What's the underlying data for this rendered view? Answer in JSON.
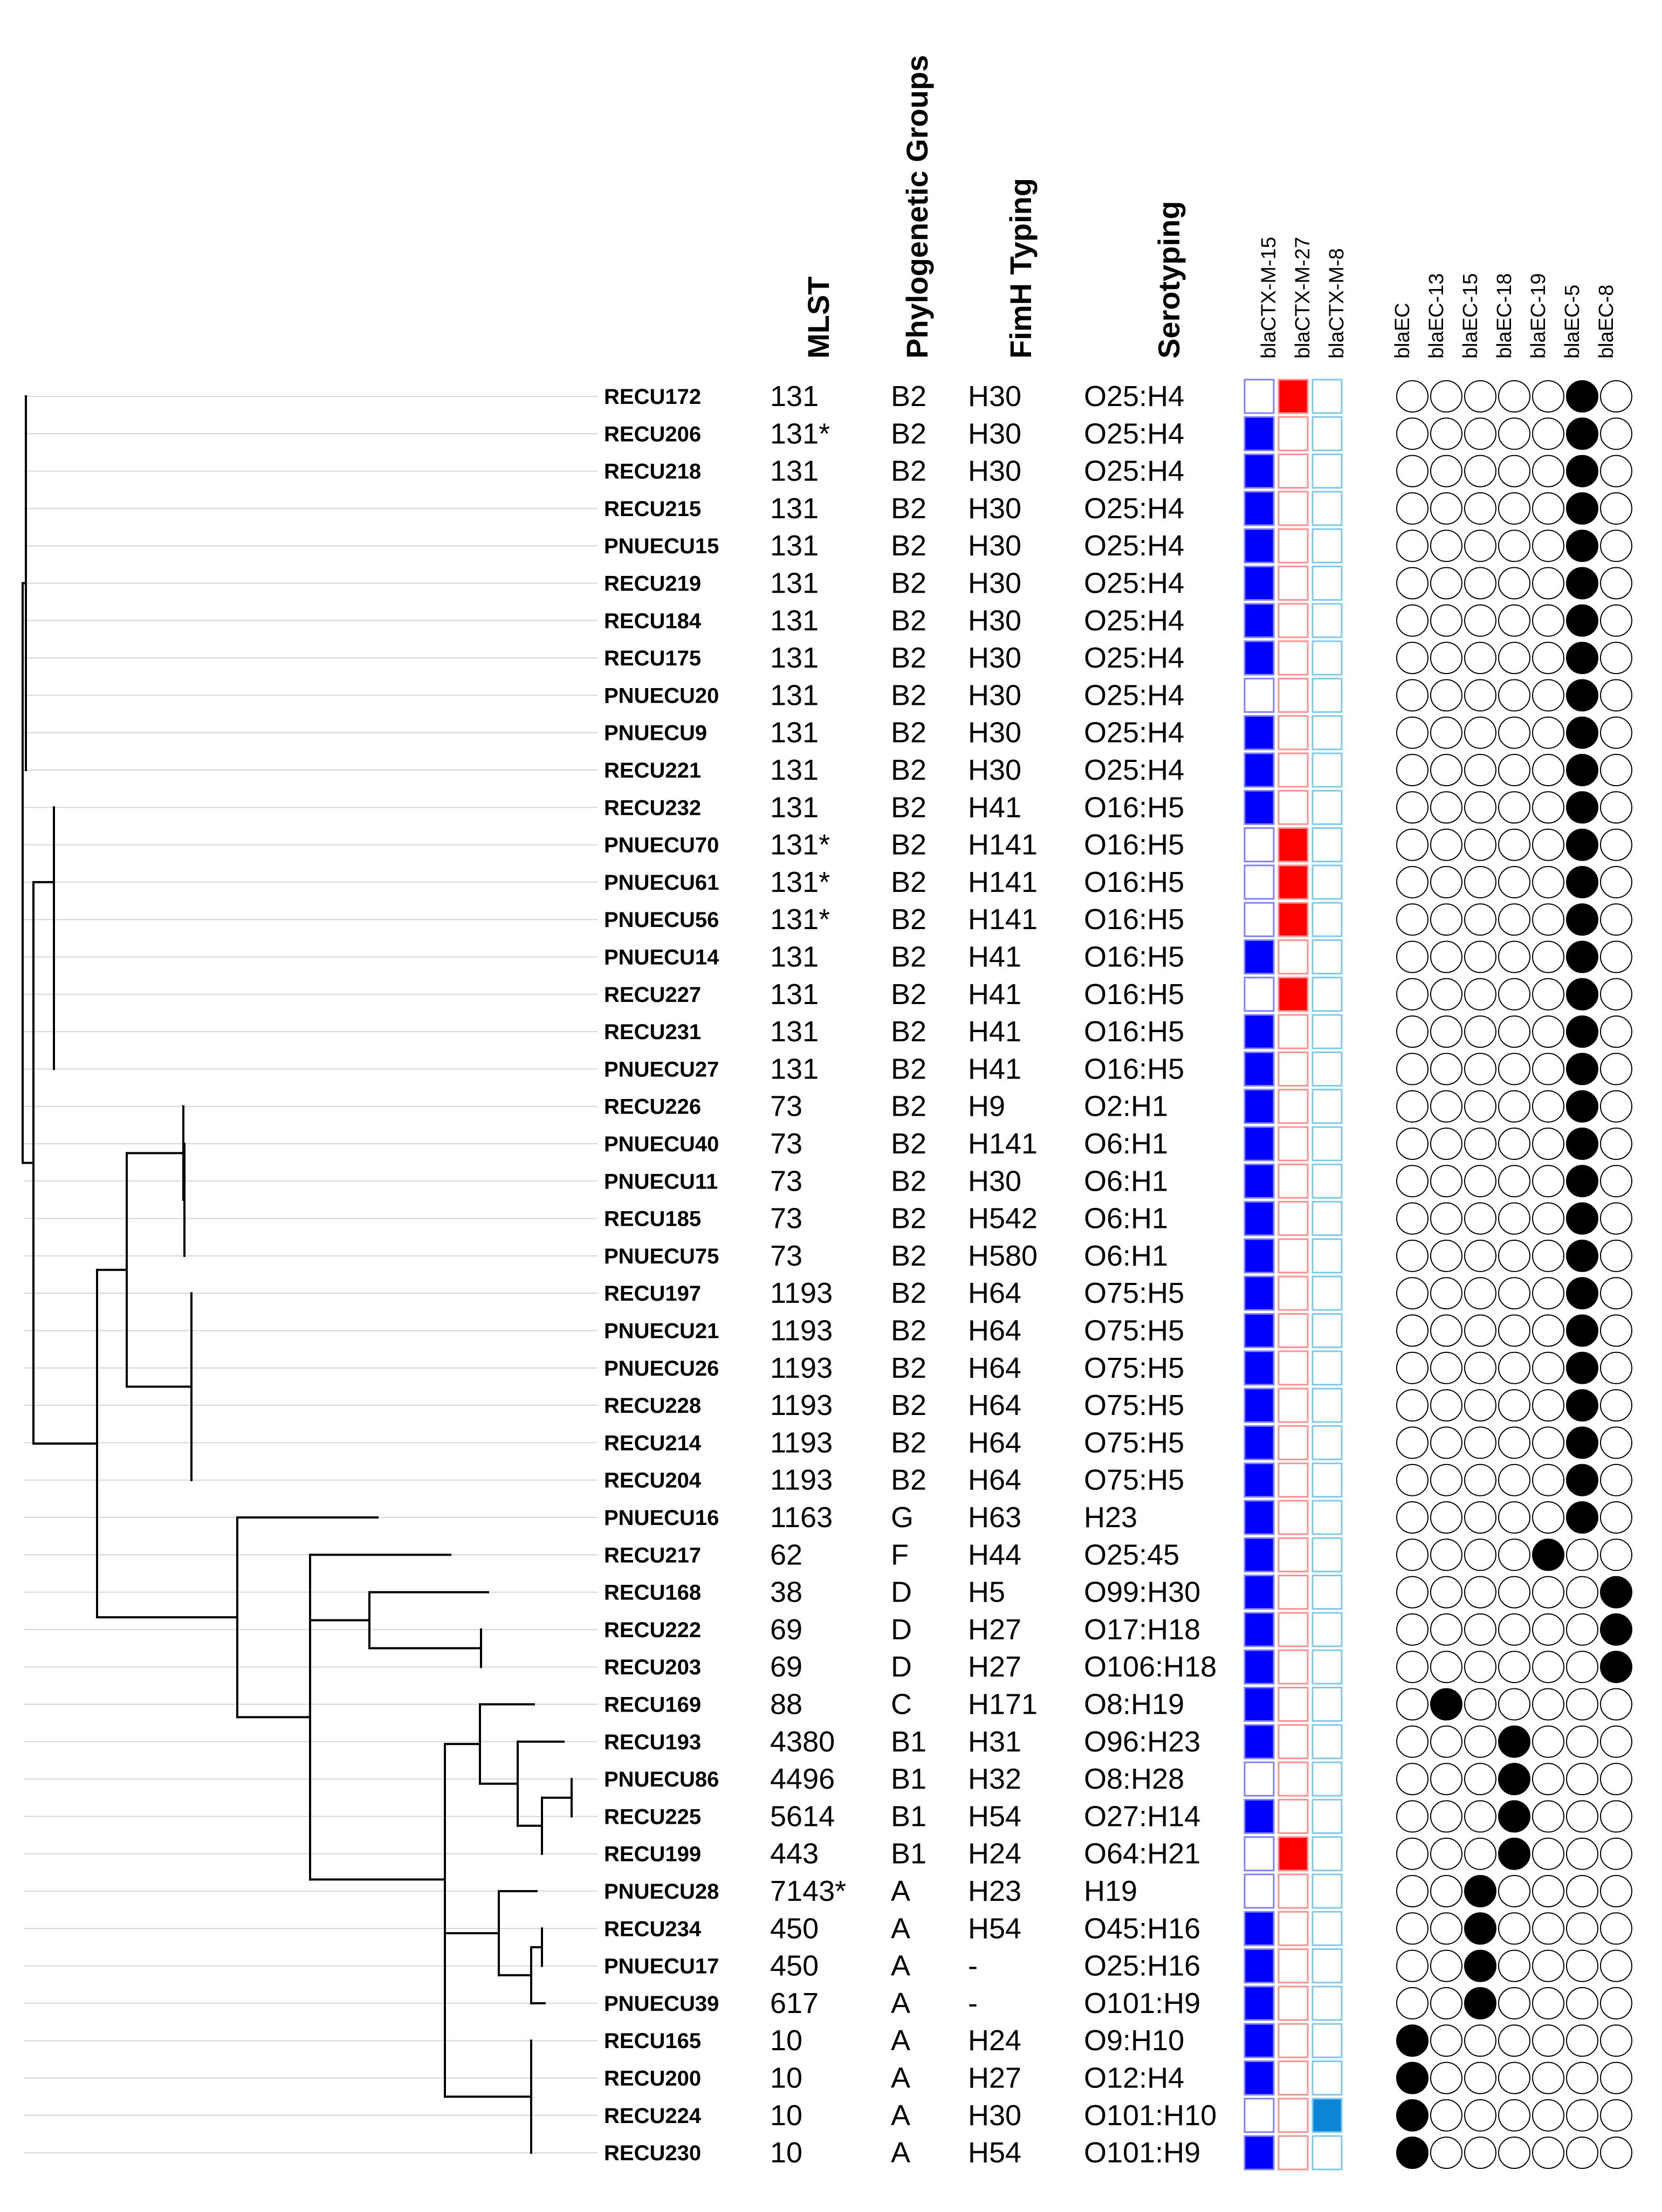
{
  "headers": {
    "mlst": "MLST",
    "phylo": "Phylogenetic Groups",
    "fimh": "FimH Typing",
    "sero": "Serotyping",
    "ctx": [
      "blaCTX-M-15",
      "blaCTX-M-27",
      "blaCTX-M-8"
    ],
    "ec": [
      "blaEC",
      "blaEC-13",
      "blaEC-15",
      "blaEC-18",
      "blaEC-19",
      "blaEC-5",
      "blaEC-8"
    ]
  },
  "colors": {
    "ctx15": "#0000ff",
    "ctx27": "#ff0000",
    "ctx8": "#0a86d4",
    "ctx15_border": "#8080ff",
    "ctx27_border": "#ff9090",
    "ctx8_border": "#80c8e8",
    "dot": "#000000",
    "guide": "#d6d6d6",
    "tree": "#000000"
  },
  "isolates": [
    {
      "id": "RECU172",
      "mlst": "131",
      "phylo": "B2",
      "fimh": "H30",
      "sero": "O25:H4",
      "ctx": [
        0,
        1,
        0
      ],
      "ec": 5
    },
    {
      "id": "RECU206",
      "mlst": "131*",
      "phylo": "B2",
      "fimh": "H30",
      "sero": "O25:H4",
      "ctx": [
        1,
        0,
        0
      ],
      "ec": 5
    },
    {
      "id": "RECU218",
      "mlst": "131",
      "phylo": "B2",
      "fimh": "H30",
      "sero": "O25:H4",
      "ctx": [
        1,
        0,
        0
      ],
      "ec": 5
    },
    {
      "id": "RECU215",
      "mlst": "131",
      "phylo": "B2",
      "fimh": "H30",
      "sero": "O25:H4",
      "ctx": [
        1,
        0,
        0
      ],
      "ec": 5
    },
    {
      "id": "PNUECU15",
      "mlst": "131",
      "phylo": "B2",
      "fimh": "H30",
      "sero": "O25:H4",
      "ctx": [
        1,
        0,
        0
      ],
      "ec": 5
    },
    {
      "id": "RECU219",
      "mlst": "131",
      "phylo": "B2",
      "fimh": "H30",
      "sero": "O25:H4",
      "ctx": [
        1,
        0,
        0
      ],
      "ec": 5
    },
    {
      "id": "RECU184",
      "mlst": "131",
      "phylo": "B2",
      "fimh": "H30",
      "sero": "O25:H4",
      "ctx": [
        1,
        0,
        0
      ],
      "ec": 5
    },
    {
      "id": "RECU175",
      "mlst": "131",
      "phylo": "B2",
      "fimh": "H30",
      "sero": "O25:H4",
      "ctx": [
        1,
        0,
        0
      ],
      "ec": 5
    },
    {
      "id": "PNUECU20",
      "mlst": "131",
      "phylo": "B2",
      "fimh": "H30",
      "sero": "O25:H4",
      "ctx": [
        0,
        0,
        0
      ],
      "ec": 5
    },
    {
      "id": "PNUECU9",
      "mlst": "131",
      "phylo": "B2",
      "fimh": "H30",
      "sero": "O25:H4",
      "ctx": [
        1,
        0,
        0
      ],
      "ec": 5
    },
    {
      "id": "RECU221",
      "mlst": "131",
      "phylo": "B2",
      "fimh": "H30",
      "sero": "O25:H4",
      "ctx": [
        1,
        0,
        0
      ],
      "ec": 5
    },
    {
      "id": "RECU232",
      "mlst": "131",
      "phylo": "B2",
      "fimh": "H41",
      "sero": "O16:H5",
      "ctx": [
        1,
        0,
        0
      ],
      "ec": 5
    },
    {
      "id": "PNUECU70",
      "mlst": "131*",
      "phylo": "B2",
      "fimh": "H141",
      "sero": "O16:H5",
      "ctx": [
        0,
        1,
        0
      ],
      "ec": 5
    },
    {
      "id": "PNUECU61",
      "mlst": "131*",
      "phylo": "B2",
      "fimh": "H141",
      "sero": "O16:H5",
      "ctx": [
        0,
        1,
        0
      ],
      "ec": 5
    },
    {
      "id": "PNUECU56",
      "mlst": "131*",
      "phylo": "B2",
      "fimh": "H141",
      "sero": "O16:H5",
      "ctx": [
        0,
        1,
        0
      ],
      "ec": 5
    },
    {
      "id": "PNUECU14",
      "mlst": "131",
      "phylo": "B2",
      "fimh": "H41",
      "sero": "O16:H5",
      "ctx": [
        1,
        0,
        0
      ],
      "ec": 5
    },
    {
      "id": "RECU227",
      "mlst": "131",
      "phylo": "B2",
      "fimh": "H41",
      "sero": "O16:H5",
      "ctx": [
        0,
        1,
        0
      ],
      "ec": 5
    },
    {
      "id": "RECU231",
      "mlst": "131",
      "phylo": "B2",
      "fimh": "H41",
      "sero": "O16:H5",
      "ctx": [
        1,
        0,
        0
      ],
      "ec": 5
    },
    {
      "id": "PNUECU27",
      "mlst": "131",
      "phylo": "B2",
      "fimh": "H41",
      "sero": "O16:H5",
      "ctx": [
        1,
        0,
        0
      ],
      "ec": 5
    },
    {
      "id": "RECU226",
      "mlst": "73",
      "phylo": "B2",
      "fimh": "H9",
      "sero": "O2:H1",
      "ctx": [
        1,
        0,
        0
      ],
      "ec": 5
    },
    {
      "id": "PNUECU40",
      "mlst": "73",
      "phylo": "B2",
      "fimh": "H141",
      "sero": "O6:H1",
      "ctx": [
        1,
        0,
        0
      ],
      "ec": 5
    },
    {
      "id": "PNUECU11",
      "mlst": "73",
      "phylo": "B2",
      "fimh": "H30",
      "sero": "O6:H1",
      "ctx": [
        1,
        0,
        0
      ],
      "ec": 5
    },
    {
      "id": "RECU185",
      "mlst": "73",
      "phylo": "B2",
      "fimh": "H542",
      "sero": "O6:H1",
      "ctx": [
        1,
        0,
        0
      ],
      "ec": 5
    },
    {
      "id": "PNUECU75",
      "mlst": "73",
      "phylo": "B2",
      "fimh": "H580",
      "sero": "O6:H1",
      "ctx": [
        1,
        0,
        0
      ],
      "ec": 5
    },
    {
      "id": "RECU197",
      "mlst": "1193",
      "phylo": "B2",
      "fimh": "H64",
      "sero": "O75:H5",
      "ctx": [
        1,
        0,
        0
      ],
      "ec": 5
    },
    {
      "id": "PNUECU21",
      "mlst": "1193",
      "phylo": "B2",
      "fimh": "H64",
      "sero": "O75:H5",
      "ctx": [
        1,
        0,
        0
      ],
      "ec": 5
    },
    {
      "id": "PNUECU26",
      "mlst": "1193",
      "phylo": "B2",
      "fimh": "H64",
      "sero": "O75:H5",
      "ctx": [
        1,
        0,
        0
      ],
      "ec": 5
    },
    {
      "id": "RECU228",
      "mlst": "1193",
      "phylo": "B2",
      "fimh": "H64",
      "sero": "O75:H5",
      "ctx": [
        1,
        0,
        0
      ],
      "ec": 5
    },
    {
      "id": "RECU214",
      "mlst": "1193",
      "phylo": "B2",
      "fimh": "H64",
      "sero": "O75:H5",
      "ctx": [
        1,
        0,
        0
      ],
      "ec": 5
    },
    {
      "id": "RECU204",
      "mlst": "1193",
      "phylo": "B2",
      "fimh": "H64",
      "sero": "O75:H5",
      "ctx": [
        1,
        0,
        0
      ],
      "ec": 5
    },
    {
      "id": "PNUECU16",
      "mlst": "1163",
      "phylo": "G",
      "fimh": "H63",
      "sero": "H23",
      "ctx": [
        1,
        0,
        0
      ],
      "ec": 5
    },
    {
      "id": "RECU217",
      "mlst": "62",
      "phylo": "F",
      "fimh": "H44",
      "sero": "O25:45",
      "ctx": [
        1,
        0,
        0
      ],
      "ec": 4
    },
    {
      "id": "RECU168",
      "mlst": "38",
      "phylo": "D",
      "fimh": "H5",
      "sero": "O99:H30",
      "ctx": [
        1,
        0,
        0
      ],
      "ec": 6
    },
    {
      "id": "RECU222",
      "mlst": "69",
      "phylo": "D",
      "fimh": "H27",
      "sero": "O17:H18",
      "ctx": [
        1,
        0,
        0
      ],
      "ec": 6
    },
    {
      "id": "RECU203",
      "mlst": "69",
      "phylo": "D",
      "fimh": "H27",
      "sero": "O106:H18",
      "ctx": [
        1,
        0,
        0
      ],
      "ec": 6
    },
    {
      "id": "RECU169",
      "mlst": "88",
      "phylo": "C",
      "fimh": "H171",
      "sero": "O8:H19",
      "ctx": [
        1,
        0,
        0
      ],
      "ec": 1
    },
    {
      "id": "RECU193",
      "mlst": "4380",
      "phylo": "B1",
      "fimh": "H31",
      "sero": "O96:H23",
      "ctx": [
        1,
        0,
        0
      ],
      "ec": 3
    },
    {
      "id": "PNUECU86",
      "mlst": "4496",
      "phylo": "B1",
      "fimh": "H32",
      "sero": "O8:H28",
      "ctx": [
        0,
        0,
        0
      ],
      "ec": 3
    },
    {
      "id": "RECU225",
      "mlst": "5614",
      "phylo": "B1",
      "fimh": "H54",
      "sero": "O27:H14",
      "ctx": [
        1,
        0,
        0
      ],
      "ec": 3
    },
    {
      "id": "RECU199",
      "mlst": "443",
      "phylo": "B1",
      "fimh": "H24",
      "sero": "O64:H21",
      "ctx": [
        0,
        1,
        0
      ],
      "ec": 3
    },
    {
      "id": "PNUECU28",
      "mlst": "7143*",
      "phylo": "A",
      "fimh": "H23",
      "sero": "H19",
      "ctx": [
        0,
        0,
        0
      ],
      "ec": 2
    },
    {
      "id": "RECU234",
      "mlst": "450",
      "phylo": "A",
      "fimh": "H54",
      "sero": "O45:H16",
      "ctx": [
        1,
        0,
        0
      ],
      "ec": 2
    },
    {
      "id": "PNUECU17",
      "mlst": "450",
      "phylo": "A",
      "fimh": "-",
      "sero": "O25:H16",
      "ctx": [
        1,
        0,
        0
      ],
      "ec": 2
    },
    {
      "id": "PNUECU39",
      "mlst": "617",
      "phylo": "A",
      "fimh": "-",
      "sero": "O101:H9",
      "ctx": [
        1,
        0,
        0
      ],
      "ec": 2
    },
    {
      "id": "RECU165",
      "mlst": "10",
      "phylo": "A",
      "fimh": "H24",
      "sero": "O9:H10",
      "ctx": [
        1,
        0,
        0
      ],
      "ec": 0
    },
    {
      "id": "RECU200",
      "mlst": "10",
      "phylo": "A",
      "fimh": "H27",
      "sero": "O12:H4",
      "ctx": [
        1,
        0,
        0
      ],
      "ec": 0
    },
    {
      "id": "RECU224",
      "mlst": "10",
      "phylo": "A",
      "fimh": "H30",
      "sero": "O101:H10",
      "ctx": [
        0,
        0,
        1
      ],
      "ec": 0
    },
    {
      "id": "RECU230",
      "mlst": "10",
      "phylo": "A",
      "fimh": "H54",
      "sero": "O101:H9",
      "ctx": [
        1,
        0,
        0
      ],
      "ec": 0
    }
  ]
}
